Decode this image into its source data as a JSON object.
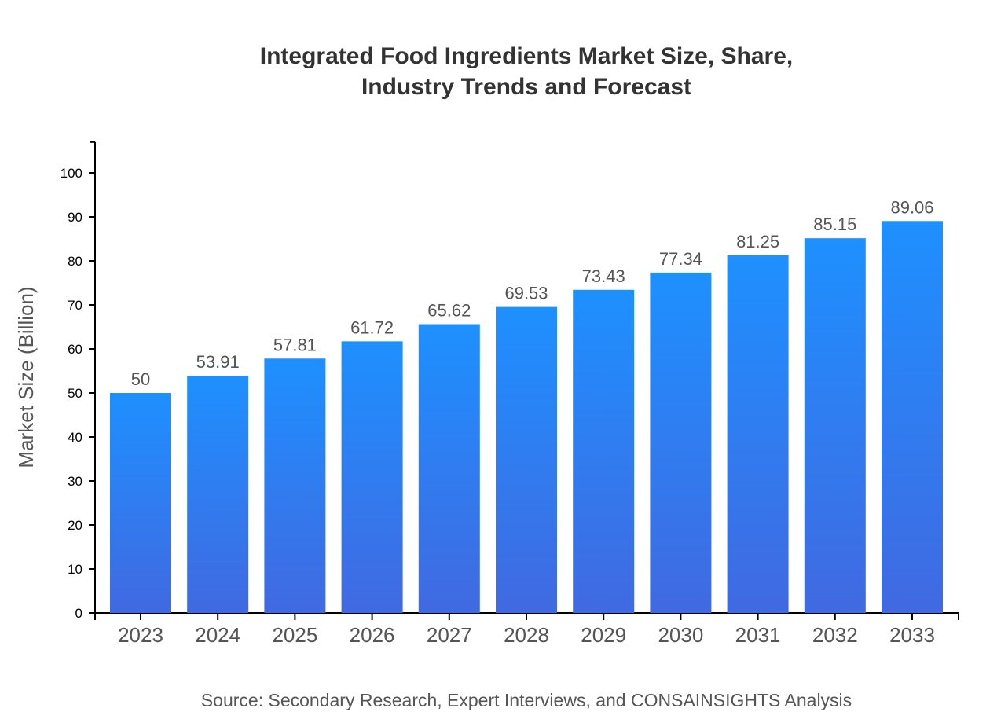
{
  "chart_data": {
    "type": "bar",
    "title_lines": [
      "Integrated Food Ingredients Market Size, Share,",
      "Industry Trends and Forecast"
    ],
    "xlabel": "",
    "ylabel": "Market Size (Billion)",
    "categories": [
      "2023",
      "2024",
      "2025",
      "2026",
      "2027",
      "2028",
      "2029",
      "2030",
      "2031",
      "2032",
      "2033"
    ],
    "values": [
      50,
      53.91,
      57.81,
      61.72,
      65.62,
      69.53,
      73.43,
      77.34,
      81.25,
      85.15,
      89.06
    ],
    "data_labels": [
      "50",
      "53.91",
      "57.81",
      "61.72",
      "65.62",
      "69.53",
      "73.43",
      "77.34",
      "81.25",
      "85.15",
      "89.06"
    ],
    "ylim": [
      0,
      107
    ],
    "yticks": [
      0,
      10,
      20,
      30,
      40,
      50,
      60,
      70,
      80,
      90,
      100
    ],
    "grid": false,
    "legend": "none",
    "colors": {
      "bar_top": "#1e90ff",
      "bar_bottom": "#4169e1",
      "label": "#555555",
      "axis": "#000000"
    }
  },
  "source": "Source: Secondary Research, Expert Interviews, and CONSAINSIGHTS Analysis"
}
